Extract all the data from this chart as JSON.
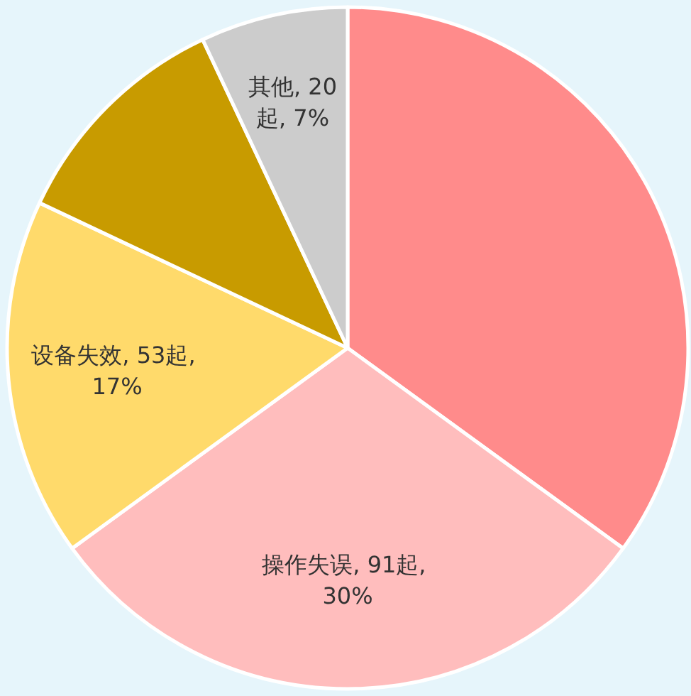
{
  "chart_data": {
    "type": "pie",
    "categories": [
      null,
      "操作失误",
      "设备失效",
      null,
      "其他"
    ],
    "values": [
      35,
      30,
      17,
      11,
      7
    ],
    "value_labels": [
      null,
      "91起, 30%",
      "53起, 17%",
      null,
      "20起, 7%"
    ],
    "colors": [
      "#ff8b8b",
      "#ffbdbd",
      "#ffda6b",
      "#c89b00",
      "#cccccc"
    ]
  }
}
